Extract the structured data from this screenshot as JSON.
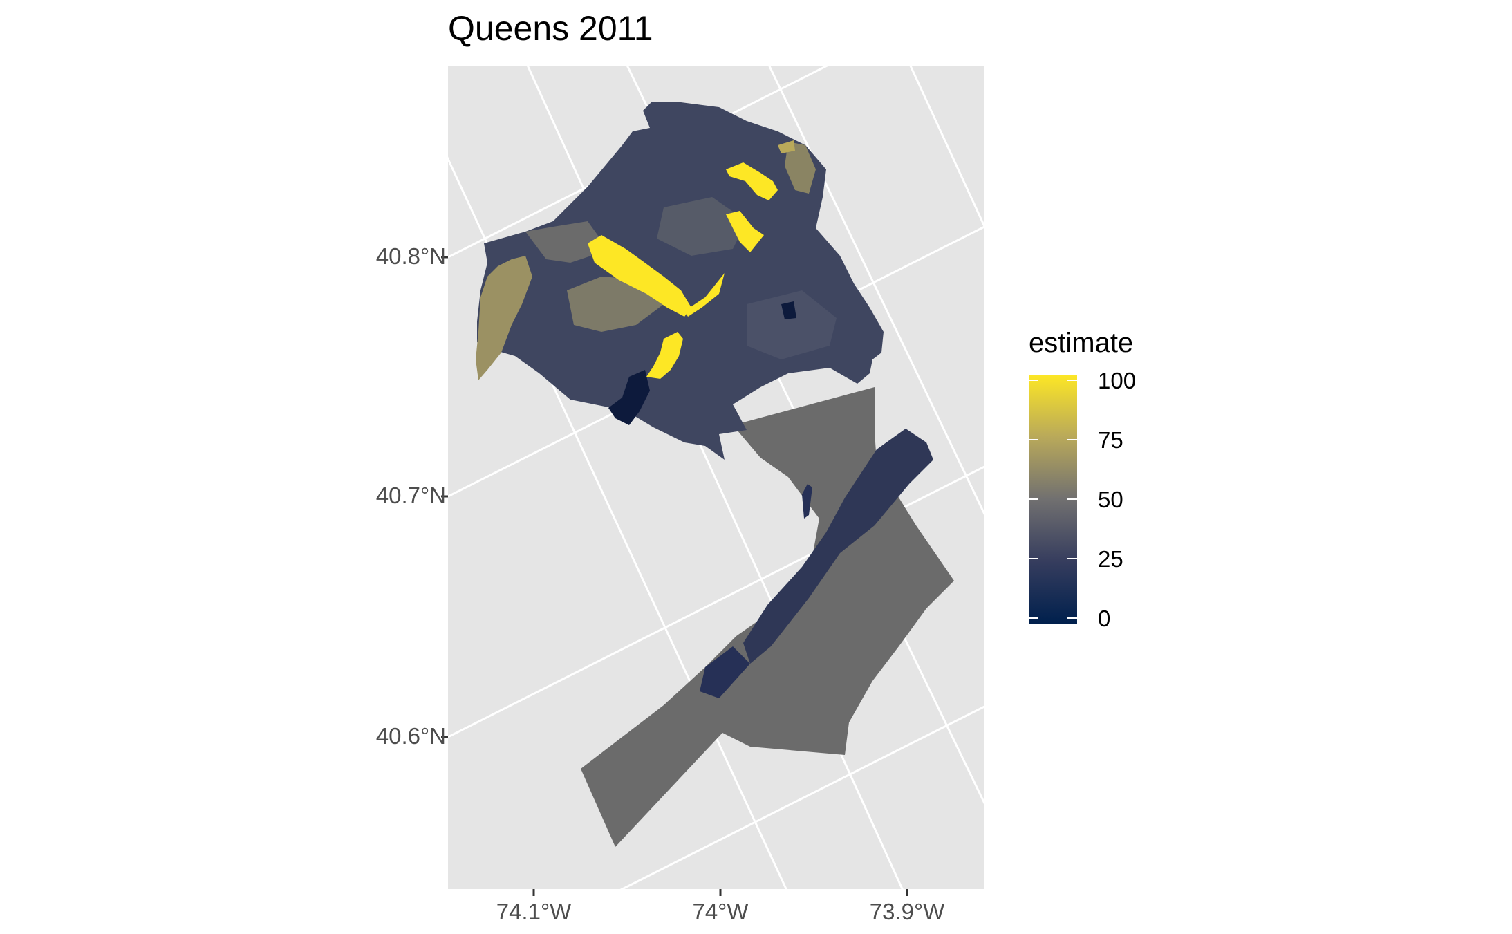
{
  "title": "Queens 2011",
  "map": {
    "panel_background": "#e5e5e5",
    "graticule_color": "#ffffff",
    "y_axis_labels": [
      "40.8°N",
      "40.7°N",
      "40.6°N"
    ],
    "x_axis_labels": [
      "74.1°W",
      "74°W",
      "73.9°W"
    ],
    "na_fill_color": "#6b6b6b"
  },
  "legend": {
    "title": "estimate",
    "labels": [
      "100",
      "75",
      "50",
      "25",
      "0"
    ],
    "colors": [
      "#fde725",
      "#b9a95a",
      "#717070",
      "#363d5e",
      "#00204d"
    ]
  }
}
